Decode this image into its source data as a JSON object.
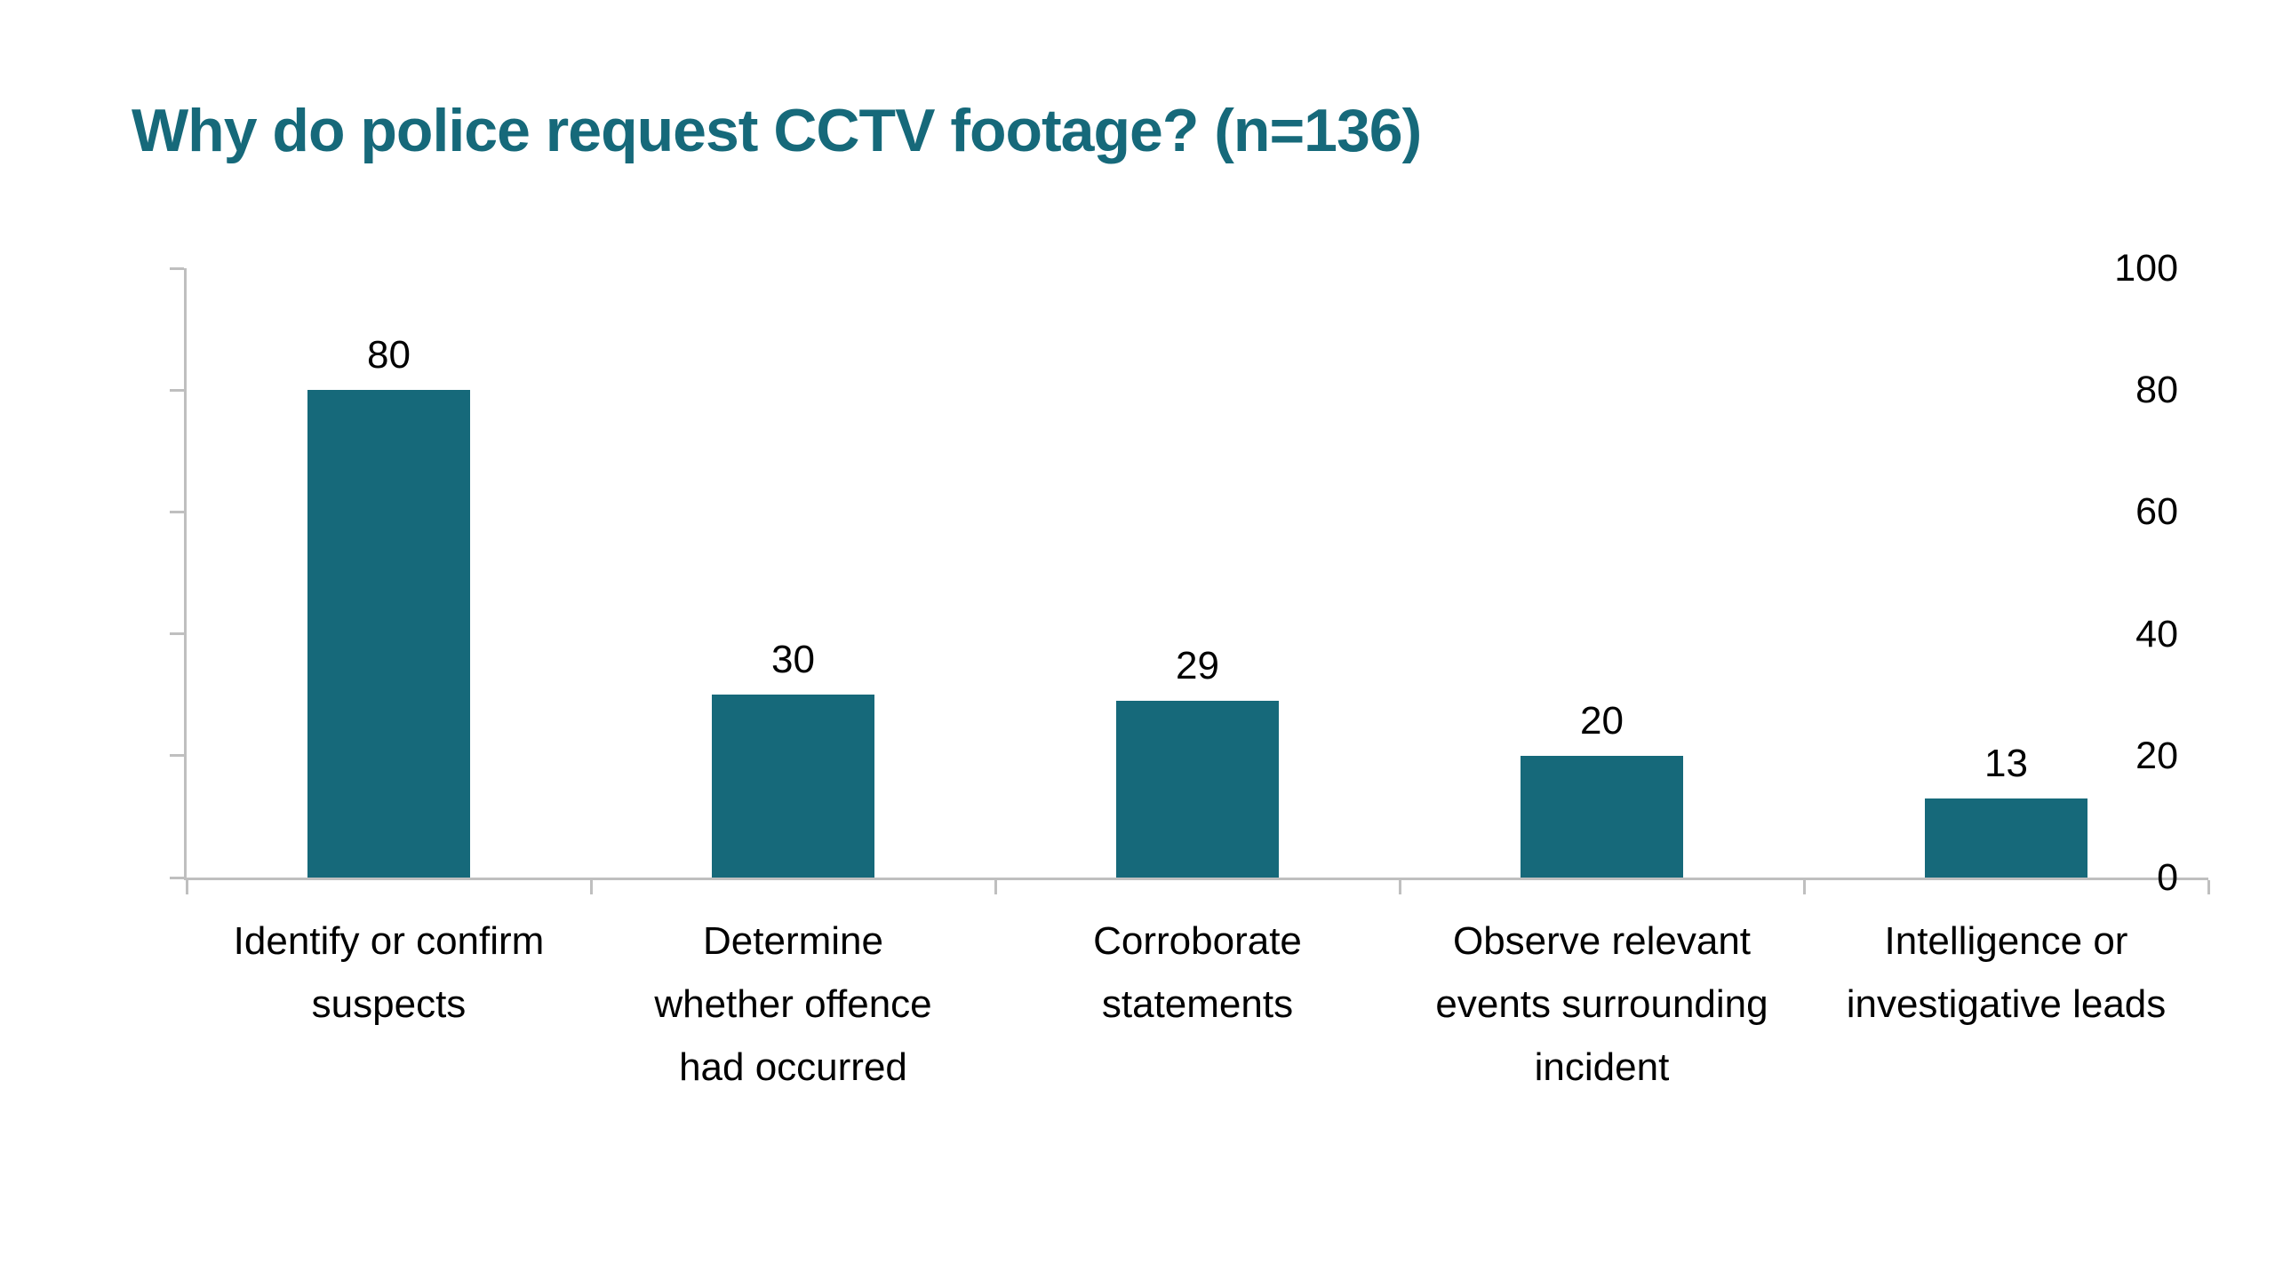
{
  "title": "Why do police request CCTV footage? (n=136)",
  "colors": {
    "bar": "#16697a",
    "title": "#16697a",
    "axis": "#bfbfbf",
    "text": "#000000",
    "background": "#ffffff"
  },
  "chart_data": {
    "type": "bar",
    "title": "Why do police request CCTV footage? (n=136)",
    "categories": [
      "Identify or confirm suspects",
      "Determine whether offence had occurred",
      "Corroborate statements",
      "Observe relevant events surrounding incident",
      "Intelligence or investigative leads"
    ],
    "category_display": [
      "Identify or confirm\nsuspects",
      "Determine\nwhether offence\nhad occurred",
      "Corroborate\nstatements",
      "Observe relevant\nevents surrounding\nincident",
      "Intelligence or\ninvestigative leads"
    ],
    "values": [
      80,
      30,
      29,
      20,
      13
    ],
    "value_labels": [
      "80",
      "30",
      "29",
      "20",
      "13"
    ],
    "xlabel": "",
    "ylabel": "",
    "ylim": [
      0,
      100
    ],
    "yticks": [
      0,
      20,
      40,
      60,
      80,
      100
    ],
    "grid": false,
    "legend": "none",
    "bar_color": "#16697a"
  }
}
